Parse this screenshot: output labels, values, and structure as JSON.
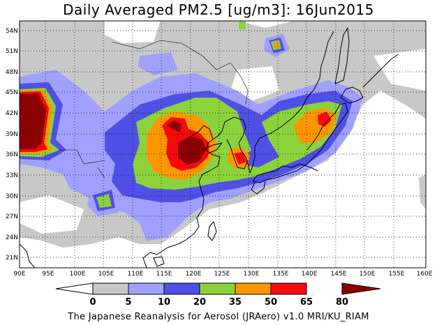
{
  "title": "Daily Averaged PM2.5 [ug/m3]: 16Jun2015",
  "credit": "The Japanese Reanalysis for Aerosol (JRAero) v1.0 MRI/KU_RIAM",
  "lat_labels": [
    "54N",
    "51N",
    "48N",
    "45N",
    "42N",
    "39N",
    "36N",
    "33N",
    "30N",
    "27N",
    "24N",
    "21N"
  ],
  "lon_labels": [
    "90E",
    "95E",
    "100E",
    "105E",
    "110E",
    "115E",
    "120E",
    "125E",
    "130E",
    "135E",
    "140E",
    "145E",
    "150E",
    "155E",
    "160E"
  ],
  "colorbar": {
    "ticks": [
      "0",
      "5",
      "10",
      "20",
      "35",
      "50",
      "65",
      "80"
    ],
    "colors": [
      "#ffffff",
      "#c8c8c8",
      "#a0a0ff",
      "#5050e6",
      "#8cd23c",
      "#ff9600",
      "#f50a0a",
      "#8b0000"
    ]
  }
}
